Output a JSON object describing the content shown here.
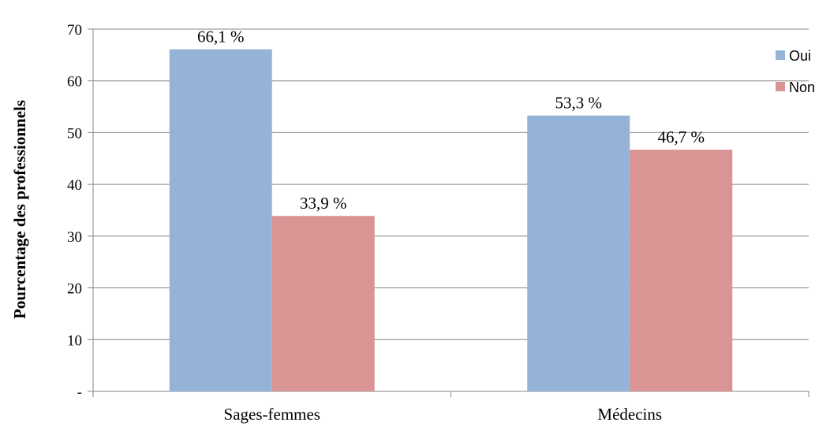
{
  "chart_data": {
    "type": "bar",
    "title": "",
    "xlabel": "",
    "ylabel": "Pourcentage des professionnels",
    "categories": [
      "Sages-femmes",
      "Médecins"
    ],
    "ylim": [
      0,
      70
    ],
    "yticks": [
      0,
      10,
      20,
      30,
      40,
      50,
      60,
      70
    ],
    "ytick_labels": [
      "-",
      "10",
      "20",
      "30",
      "40",
      "50",
      "60",
      "70"
    ],
    "grid": true,
    "legend_position": "right",
    "series": [
      {
        "name": "Oui",
        "color": "#95B3D7",
        "values": [
          66.1,
          53.3
        ],
        "labels": [
          "66,1 %",
          "53,3 %"
        ]
      },
      {
        "name": "Non",
        "color": "#D99594",
        "values": [
          33.9,
          46.7
        ],
        "labels": [
          "33,9 %",
          "46,7 %"
        ]
      }
    ]
  }
}
